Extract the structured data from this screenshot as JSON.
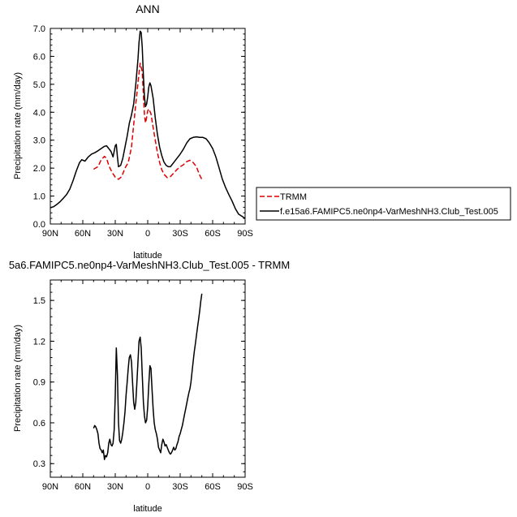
{
  "chart_data": [
    {
      "type": "line",
      "title": "ANN",
      "xlabel": "latitude",
      "ylabel": "Precipitation rate (mm/day)",
      "xlim": [
        90,
        -90
      ],
      "ylim": [
        0,
        7
      ],
      "x_ticks": [
        90,
        60,
        30,
        0,
        -30,
        -60,
        -90
      ],
      "x_tick_labels": [
        "90N",
        "60N",
        "30N",
        "0",
        "30S",
        "60S",
        "90S"
      ],
      "y_ticks": [
        0,
        1,
        2,
        3,
        4,
        5,
        6,
        7
      ],
      "y_tick_labels": [
        "0.0",
        "1.0",
        "2.0",
        "3.0",
        "4.0",
        "5.0",
        "6.0",
        "7.0"
      ],
      "legend_position": "right",
      "series": [
        {
          "name": "TRMM",
          "color": "#dd0000",
          "dash": "dashed",
          "x": [
            50,
            46,
            43,
            40,
            38,
            36,
            33,
            30,
            27,
            24,
            21,
            18,
            15,
            13,
            11,
            9,
            7,
            5,
            4,
            3,
            2,
            1,
            0,
            -1,
            -3,
            -5,
            -7,
            -9,
            -11,
            -13,
            -15,
            -18,
            -21,
            -24,
            -27,
            -30,
            -33,
            -36,
            -39,
            -42,
            -45,
            -48,
            -50
          ],
          "y": [
            1.96,
            2.05,
            2.3,
            2.42,
            2.35,
            2.1,
            1.85,
            1.68,
            1.6,
            1.7,
            2.0,
            2.2,
            2.75,
            3.55,
            4.3,
            5.05,
            5.75,
            5.45,
            4.6,
            3.9,
            3.62,
            3.82,
            4.05,
            4.12,
            3.95,
            3.45,
            3.0,
            2.55,
            2.2,
            1.95,
            1.78,
            1.66,
            1.7,
            1.82,
            1.95,
            2.05,
            2.12,
            2.23,
            2.28,
            2.2,
            2.05,
            1.75,
            1.6
          ]
        },
        {
          "name": "f.e15a6.FAMIPC5.ne0np4-VarMeshNH3.Club_Test.005",
          "color": "#000000",
          "dash": "solid",
          "x": [
            90,
            87,
            84,
            81,
            78,
            75,
            72,
            69,
            66,
            63,
            61,
            58,
            55,
            52,
            49,
            46,
            43,
            40,
            38,
            36,
            34,
            32,
            30,
            29,
            28,
            27,
            25,
            23,
            21,
            19,
            17,
            15,
            13,
            11,
            9,
            8,
            7,
            6,
            5,
            4,
            3,
            2,
            1,
            0,
            -1,
            -2,
            -3,
            -5,
            -7,
            -9,
            -11,
            -13,
            -15,
            -17,
            -19,
            -21,
            -24,
            -27,
            -30,
            -33,
            -36,
            -39,
            -42,
            -45,
            -48,
            -51,
            -54,
            -57,
            -60,
            -63,
            -66,
            -69,
            -72,
            -75,
            -78,
            -81,
            -84,
            -87,
            -90
          ],
          "y": [
            0.58,
            0.62,
            0.7,
            0.8,
            0.92,
            1.05,
            1.25,
            1.55,
            1.9,
            2.2,
            2.3,
            2.25,
            2.4,
            2.5,
            2.55,
            2.62,
            2.7,
            2.78,
            2.8,
            2.7,
            2.6,
            2.4,
            2.8,
            2.85,
            2.4,
            2.05,
            2.1,
            2.35,
            2.75,
            3.15,
            3.6,
            3.9,
            4.3,
            5.0,
            5.9,
            6.5,
            6.9,
            6.85,
            6.3,
            5.3,
            4.55,
            4.2,
            4.3,
            4.55,
            4.9,
            5.05,
            4.95,
            4.5,
            3.8,
            3.2,
            2.75,
            2.45,
            2.22,
            2.1,
            2.05,
            2.05,
            2.2,
            2.35,
            2.5,
            2.68,
            2.9,
            3.05,
            3.1,
            3.12,
            3.1,
            3.1,
            3.05,
            2.9,
            2.7,
            2.4,
            2.0,
            1.6,
            1.3,
            1.05,
            0.82,
            0.55,
            0.35,
            0.28,
            0.2
          ]
        }
      ]
    },
    {
      "type": "line",
      "title": "5a6.FAMIPC5.ne0np4-VarMeshNH3.Club_Test.005 - TRMM",
      "xlabel": "latitude",
      "ylabel": "Precipitation rate (mm/day)",
      "xlim": [
        90,
        -90
      ],
      "ylim": [
        0.2,
        1.65
      ],
      "x_ticks": [
        90,
        60,
        30,
        0,
        -30,
        -60,
        -90
      ],
      "x_tick_labels": [
        "90N",
        "60N",
        "30N",
        "0",
        "30S",
        "60S",
        "90S"
      ],
      "y_ticks": [
        0.3,
        0.6,
        0.9,
        1.2,
        1.5
      ],
      "y_tick_labels": [
        "0.3",
        "0.6",
        "0.9",
        "1.2",
        "1.5"
      ],
      "series": [
        {
          "color": "#000000",
          "x": [
            50,
            49,
            48,
            47,
            46,
            45,
            44,
            43,
            42,
            41,
            40,
            39,
            38,
            37,
            36,
            35,
            34,
            33,
            32,
            31,
            30,
            29,
            28,
            27,
            26,
            25,
            24,
            23,
            22,
            21,
            20,
            19,
            18,
            17,
            16,
            15,
            14,
            13,
            12,
            11,
            10,
            9,
            8,
            7,
            6,
            5,
            4,
            3,
            2,
            1,
            0,
            -1,
            -2,
            -3,
            -4,
            -5,
            -6,
            -7,
            -8,
            -9,
            -10,
            -11,
            -12,
            -13,
            -14,
            -15,
            -16,
            -17,
            -18,
            -19,
            -20,
            -21,
            -22,
            -23,
            -24,
            -25,
            -26,
            -27,
            -28,
            -29,
            -30,
            -31,
            -32,
            -33,
            -34,
            -35,
            -36,
            -37,
            -38,
            -39,
            -40,
            -41,
            -42,
            -43,
            -44,
            -45,
            -46,
            -47,
            -48,
            -49,
            -50
          ],
          "y": [
            0.56,
            0.58,
            0.57,
            0.55,
            0.52,
            0.45,
            0.41,
            0.4,
            0.38,
            0.4,
            0.33,
            0.36,
            0.35,
            0.38,
            0.45,
            0.48,
            0.44,
            0.43,
            0.45,
            0.55,
            0.8,
            1.15,
            0.95,
            0.6,
            0.47,
            0.45,
            0.48,
            0.53,
            0.6,
            0.68,
            0.8,
            0.9,
            1.0,
            1.08,
            1.1,
            1.05,
            0.9,
            0.75,
            0.7,
            0.75,
            0.9,
            1.05,
            1.2,
            1.23,
            1.15,
            0.95,
            0.75,
            0.65,
            0.6,
            0.62,
            0.72,
            0.88,
            1.02,
            1.0,
            0.85,
            0.7,
            0.6,
            0.55,
            0.52,
            0.48,
            0.42,
            0.4,
            0.38,
            0.44,
            0.48,
            0.46,
            0.43,
            0.44,
            0.42,
            0.4,
            0.38,
            0.37,
            0.38,
            0.4,
            0.42,
            0.4,
            0.41,
            0.44,
            0.46,
            0.5,
            0.52,
            0.55,
            0.58,
            0.62,
            0.66,
            0.7,
            0.74,
            0.78,
            0.82,
            0.85,
            0.9,
            0.98,
            1.05,
            1.12,
            1.18,
            1.24,
            1.3,
            1.36,
            1.42,
            1.49,
            1.55
          ]
        }
      ]
    }
  ]
}
